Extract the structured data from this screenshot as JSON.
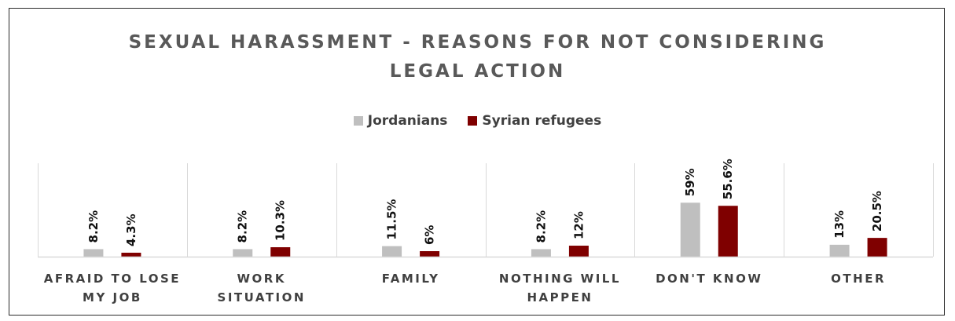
{
  "chart_data": {
    "type": "bar",
    "title_lines": [
      "SEXUAL HARASSMENT - REASONS FOR NOT CONSIDERING",
      "LEGAL ACTION"
    ],
    "categories": [
      [
        "AFRAID TO LOSE",
        "MY JOB"
      ],
      [
        "WORK",
        "SITUATION"
      ],
      [
        "FAMILY"
      ],
      [
        "NOTHING WILL",
        "HAPPEN"
      ],
      [
        "DON'T KNOW"
      ],
      [
        "OTHER"
      ]
    ],
    "series": [
      {
        "name": "Jordanians",
        "color": "#bfbfbf",
        "values": [
          8.2,
          8.2,
          11.5,
          8.2,
          59,
          13
        ],
        "labels": [
          "8.2%",
          "8.2%",
          "11.5%",
          "8.2%",
          "59%",
          "13%"
        ]
      },
      {
        "name": "Syrian refugees",
        "color": "#7f0000",
        "values": [
          4.3,
          10.3,
          6,
          12,
          55.6,
          20.5
        ],
        "labels": [
          "4.3%",
          "10.3%",
          "6%",
          "12%",
          "55.6%",
          "20.5%"
        ]
      }
    ],
    "legend_position": "top",
    "grid": false
  }
}
